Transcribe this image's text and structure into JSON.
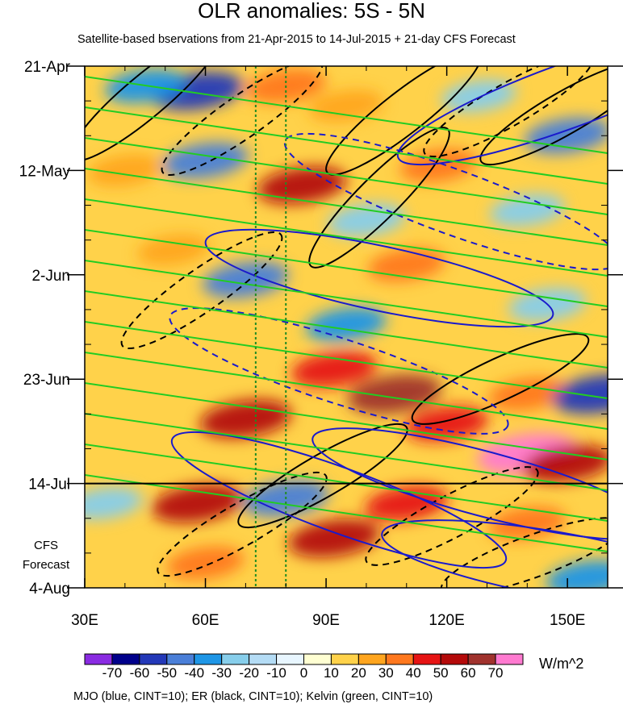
{
  "chart_data": {
    "type": "heatmap",
    "title": "OLR anomalies: 5S - 5N",
    "subtitle": "Satellite-based bservations from 21-Apr-2015 to 14-Jul-2015 + 21-day CFS Forecast",
    "x_ticks": [
      {
        "value": 30,
        "label": "30E"
      },
      {
        "value": 60,
        "label": "60E"
      },
      {
        "value": 90,
        "label": "90E"
      },
      {
        "value": 120,
        "label": "120E"
      },
      {
        "value": 150,
        "label": "150E"
      }
    ],
    "x_range": [
      30,
      160
    ],
    "y_range_days": [
      0,
      105
    ],
    "y_ticks": [
      {
        "day": 0,
        "label": "21-Apr"
      },
      {
        "day": 21,
        "label": "12-May"
      },
      {
        "day": 42,
        "label": "2-Jun"
      },
      {
        "day": 63,
        "label": "23-Jun"
      },
      {
        "day": 84,
        "label": "14-Jul"
      },
      {
        "day": 105,
        "label": "4-Aug"
      }
    ],
    "forecast_start_day": 84,
    "forecast_label": [
      "CFS",
      "Forecast"
    ],
    "reference_longitudes": [
      72.5,
      80
    ],
    "colorbar": {
      "units": "W/m^2",
      "levels": [
        -70,
        -60,
        -50,
        -40,
        -30,
        -20,
        -10,
        0,
        10,
        20,
        30,
        40,
        50,
        60,
        70
      ],
      "colors": [
        "#8a2be2",
        "#00008b",
        "#2338b8",
        "#4a7fd8",
        "#1e96e6",
        "#87ceeb",
        "#b4dcf5",
        "#e8f6ff",
        "#ffffd2",
        "#ffd24a",
        "#ffa51e",
        "#ff781e",
        "#e61414",
        "#b40a0a",
        "#a0322d",
        "#ff7ad0"
      ]
    },
    "anomaly_patches": [
      {
        "lon": 58,
        "day": 5,
        "value": -55
      },
      {
        "lon": 45,
        "day": 4,
        "value": -35
      },
      {
        "lon": 80,
        "day": 4,
        "value": 35
      },
      {
        "lon": 95,
        "day": 8,
        "value": 25
      },
      {
        "lon": 128,
        "day": 6,
        "value": -25
      },
      {
        "lon": 150,
        "day": 14,
        "value": -45
      },
      {
        "lon": 60,
        "day": 19,
        "value": -45
      },
      {
        "lon": 40,
        "day": 21,
        "value": 25
      },
      {
        "lon": 84,
        "day": 24,
        "value": 50
      },
      {
        "lon": 118,
        "day": 20,
        "value": 30
      },
      {
        "lon": 140,
        "day": 29,
        "value": -25
      },
      {
        "lon": 100,
        "day": 31,
        "value": -30
      },
      {
        "lon": 70,
        "day": 43,
        "value": -45
      },
      {
        "lon": 52,
        "day": 37,
        "value": 20
      },
      {
        "lon": 110,
        "day": 40,
        "value": 30
      },
      {
        "lon": 95,
        "day": 52,
        "value": -35
      },
      {
        "lon": 145,
        "day": 48,
        "value": -30
      },
      {
        "lon": 92,
        "day": 61,
        "value": 45
      },
      {
        "lon": 107,
        "day": 66,
        "value": 60
      },
      {
        "lon": 70,
        "day": 71,
        "value": 55
      },
      {
        "lon": 140,
        "day": 66,
        "value": 30
      },
      {
        "lon": 158,
        "day": 66,
        "value": -60
      },
      {
        "lon": 120,
        "day": 72,
        "value": 40
      },
      {
        "lon": 140,
        "day": 78,
        "value": 70
      },
      {
        "lon": 150,
        "day": 80,
        "value": 50
      },
      {
        "lon": 58,
        "day": 88,
        "value": 55
      },
      {
        "lon": 80,
        "day": 87,
        "value": -45
      },
      {
        "lon": 92,
        "day": 95,
        "value": 55
      },
      {
        "lon": 110,
        "day": 88,
        "value": 40
      },
      {
        "lon": 140,
        "day": 92,
        "value": 30
      },
      {
        "lon": 155,
        "day": 103,
        "value": -40
      },
      {
        "lon": 35,
        "day": 88,
        "value": -25
      },
      {
        "lon": 60,
        "day": 100,
        "value": 30
      }
    ]
  },
  "colorbar_labels": [
    "-70",
    "-60",
    "-50",
    "-40",
    "-30",
    "-20",
    "-10",
    "0",
    "10",
    "20",
    "30",
    "40",
    "50",
    "60",
    "70"
  ],
  "footnote": "MJO (blue, CINT=10); ER (black, CINT=10); Kelvin (green, CINT=10)",
  "line_colors": {
    "mjo": "#1a1acc",
    "er": "#000000",
    "kelvin": "#22cc22",
    "reference": "#228b22"
  }
}
